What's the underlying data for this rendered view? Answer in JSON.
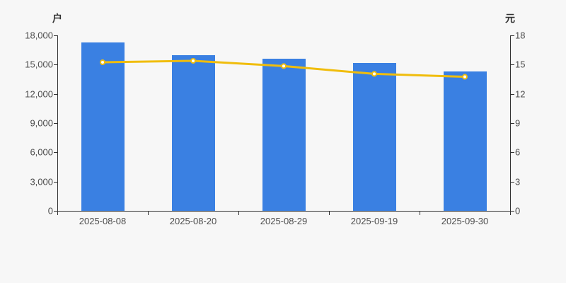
{
  "chart_data": {
    "type": "bar",
    "subtype": "bar-and-line-dual-axis",
    "title": "",
    "categories": [
      "2025-08-08",
      "2025-08-20",
      "2025-08-29",
      "2025-09-19",
      "2025-09-30"
    ],
    "series": [
      {
        "type": "bar",
        "axis": "left",
        "color": "#3a80e2",
        "values": [
          17300,
          15950,
          15600,
          15150,
          14270
        ]
      },
      {
        "type": "line",
        "axis": "right",
        "color": "#f0bd0d",
        "marker_fill": "#ffffff",
        "values": [
          15.24,
          15.39,
          14.85,
          14.05,
          13.75
        ]
      }
    ],
    "left_axis": {
      "title": "户",
      "min": 0,
      "max": 18000,
      "tick_labels": [
        "18,000",
        "15,000",
        "12,000",
        "9,000",
        "6,000",
        "3,000",
        "0"
      ]
    },
    "right_axis": {
      "title": "元",
      "min": 0,
      "max": 18,
      "tick_labels": [
        "18",
        "15",
        "12",
        "9",
        "6",
        "3",
        "0"
      ]
    },
    "grid_lines": false,
    "legend": false,
    "colors": {
      "background": "#f7f7f7",
      "axis_line": "#333333",
      "tick_label": "#4d4d4d"
    }
  }
}
